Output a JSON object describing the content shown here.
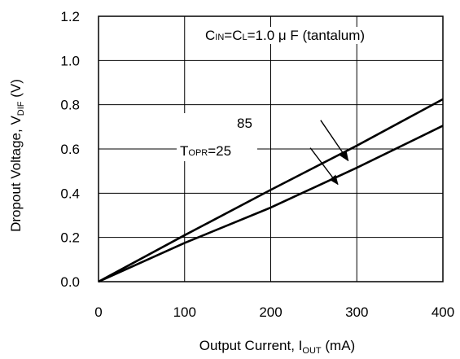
{
  "chart_data": {
    "type": "line",
    "xlabel": {
      "main": "Output Current, I",
      "sub": "OUT",
      "unit": " (mA)"
    },
    "ylabel": {
      "main": "Dropout Voltage, V",
      "sub": "DIF",
      "unit": " (V)"
    },
    "xlim": [
      0,
      400
    ],
    "ylim": [
      0,
      1.2
    ],
    "xticks": [
      "0",
      "100",
      "200",
      "300",
      "400"
    ],
    "yticks": [
      "0.0",
      "0.2",
      "0.4",
      "0.6",
      "0.8",
      "1.0",
      "1.2"
    ],
    "xtick_values": [
      0,
      100,
      200,
      300,
      400
    ],
    "ytick_values": [
      0,
      0.2,
      0.4,
      0.6,
      0.8,
      1.0,
      1.2
    ],
    "grid": true,
    "series": [
      {
        "x": [
          0,
          100,
          200,
          300,
          400
        ],
        "values": [
          0,
          0.21,
          0.415,
          0.615,
          0.825
        ],
        "color": "#000000"
      },
      {
        "x": [
          0,
          100,
          200,
          300,
          400
        ],
        "values": [
          0,
          0.175,
          0.335,
          0.515,
          0.705
        ],
        "color": "#000000"
      }
    ],
    "annotations": {
      "condition": {
        "p1": "C",
        "s1": "IN",
        "p2": "=C",
        "s2": "L",
        "p3": "=1.0 μ F (tantalum)"
      },
      "label_85": "85",
      "label_25": {
        "p1": "T",
        "s1": "OPR",
        "p2": "=25"
      }
    },
    "arrows": [
      {
        "from": [
          258,
          0.73
        ],
        "to": [
          290,
          0.547
        ]
      },
      {
        "from": [
          246,
          0.605
        ],
        "to": [
          278,
          0.44
        ]
      }
    ]
  }
}
